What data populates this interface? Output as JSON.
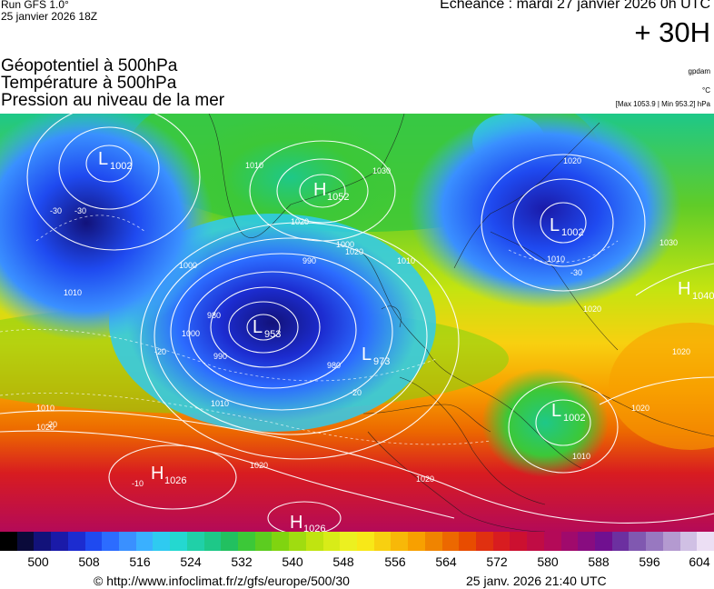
{
  "header": {
    "run_label": "Run GFS 1.0°",
    "run_date": "25 janvier 2026 18Z",
    "valid_time": "Echéance : mardi 27 janvier 2026 0h UTC",
    "lead_time": "+ 30H"
  },
  "titles": {
    "geopotential": "Géopotentiel à 500hPa",
    "temperature": "Température à 500hPa",
    "pressure": "Pression au niveau de la mer"
  },
  "units": {
    "geopotential": "gpdam",
    "temperature": "°C",
    "pressure": "[Max 1053.9 | Min 953.2] hPa"
  },
  "pressure_centers": [
    {
      "type": "L",
      "value": "1002",
      "region": "western Atlantic"
    },
    {
      "type": "H",
      "value": "1052",
      "region": "Greenland"
    },
    {
      "type": "L",
      "value": "1002",
      "region": "Scandinavia"
    },
    {
      "type": "H",
      "value": "1040",
      "region": "western Russia"
    },
    {
      "type": "L",
      "value": "953",
      "region": "mid-Atlantic"
    },
    {
      "type": "L",
      "value": "973",
      "region": "west of Ireland"
    },
    {
      "type": "L",
      "value": "1002",
      "region": "Ionian Sea"
    },
    {
      "type": "H",
      "value": "1026",
      "region": "subtropical Atlantic"
    },
    {
      "type": "H",
      "value": "1026",
      "region": "Sahara"
    }
  ],
  "isobar_labels": [
    "1010",
    "1020",
    "990",
    "1000",
    "980",
    "1010",
    "1010",
    "1020",
    "1020",
    "1030",
    "1010",
    "1020",
    "980",
    "990",
    "1000",
    "1010",
    "1020",
    "1020",
    "1020",
    "1020",
    "1010",
    "1020",
    "1000",
    "1030",
    "1010"
  ],
  "temperature_labels": [
    "-30",
    "-30",
    "-20",
    "-20",
    "-10",
    "-20",
    "-30"
  ],
  "colorbar": {
    "ticks": [
      "500",
      "508",
      "516",
      "524",
      "532",
      "540",
      "548",
      "556",
      "564",
      "572",
      "580",
      "588",
      "596",
      "604"
    ],
    "colors": [
      "#000000",
      "#0a0a3a",
      "#12127a",
      "#1a1aa8",
      "#1c2cd0",
      "#1f4af0",
      "#2c6cff",
      "#3a90ff",
      "#3ab0ff",
      "#2fcaf0",
      "#24d8d0",
      "#20d0a8",
      "#1ec888",
      "#22c060",
      "#3cc838",
      "#5ccc20",
      "#80d410",
      "#a0dc10",
      "#c0e410",
      "#d8ec18",
      "#ecf020",
      "#f8e818",
      "#f8d010",
      "#f8b808",
      "#f8a000",
      "#f08400",
      "#ec6800",
      "#e84c00",
      "#e03010",
      "#d81c20",
      "#cc1030",
      "#c00c44",
      "#b40a58",
      "#a00a6c",
      "#880c80",
      "#701090",
      "#6c30a0",
      "#8058b0",
      "#9878c0",
      "#b49ad0",
      "#d0c0e4",
      "#ecdff4"
    ]
  },
  "footer": {
    "credit": "© http://www.infoclimat.fr/z/gfs/europe/500/30",
    "stamp": "25 janv. 2026 21:40 UTC"
  }
}
